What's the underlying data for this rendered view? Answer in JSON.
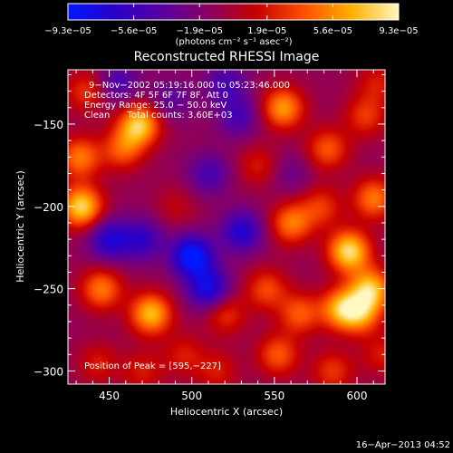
{
  "chart_data": {
    "type": "heatmap",
    "title": "Reconstructed RHESSI Image",
    "xlabel": "Heliocentric X (arcsec)",
    "ylabel": "Heliocentric Y (arcsec)",
    "xlim": [
      425,
      617
    ],
    "ylim": [
      -308,
      -117
    ],
    "x_ticks": [
      450,
      500,
      550,
      600
    ],
    "x_tick_labels": [
      "450",
      "500",
      "550",
      "600"
    ],
    "y_ticks": [
      -150,
      -200,
      -250,
      -300
    ],
    "y_tick_labels": [
      "−150",
      "−200",
      "−250",
      "−300"
    ],
    "colorbar": {
      "min": -9.3e-05,
      "max": 9.3e-05,
      "tick_values": [
        -9.3e-05,
        -5.6e-05,
        -1.9e-05,
        1.9e-05,
        5.6e-05,
        9.3e-05
      ],
      "tick_labels": [
        "−9.3e−05",
        "−5.6e−05",
        "−1.9e−05",
        "1.9e−05",
        "5.6e−05",
        "9.3e−05"
      ],
      "unit_label": "(photons cm⁻² s⁻¹ asec⁻²)",
      "colors": [
        "#0018ff",
        "#2a00c8",
        "#5a00a0",
        "#8a0060",
        "#c80000",
        "#ff5000",
        "#ffb000",
        "#fff8c0"
      ]
    },
    "annotations": [
      "9−Nov−2002 05:19:16.000 to 05:23:46.000",
      "Detectors: 4F 5F 6F 7F 8F, Att 0",
      "Energy Range: 25.0 − 50.0 keV",
      "Clean      Total counts: 3.60E+03"
    ],
    "peak_label": "Position of Peak = [595,−227]",
    "peak_position": [
      595,
      -227
    ],
    "emission_blobs": [
      {
        "x": 433,
        "y": -200,
        "value": 9e-05
      },
      {
        "x": 432,
        "y": -170,
        "value": 6e-05
      },
      {
        "x": 436,
        "y": -130,
        "value": 4e-05
      },
      {
        "x": 468,
        "y": -150,
        "value": 8.5e-05
      },
      {
        "x": 458,
        "y": -165,
        "value": 5e-05
      },
      {
        "x": 490,
        "y": -200,
        "value": 2e-05
      },
      {
        "x": 475,
        "y": -265,
        "value": 8e-05
      },
      {
        "x": 445,
        "y": -250,
        "value": 6e-05
      },
      {
        "x": 470,
        "y": -300,
        "value": 3e-05
      },
      {
        "x": 443,
        "y": -295,
        "value": 3e-05
      },
      {
        "x": 495,
        "y": -290,
        "value": 3e-05
      },
      {
        "x": 520,
        "y": -265,
        "value": 4e-05
      },
      {
        "x": 545,
        "y": -250,
        "value": 4.5e-05
      },
      {
        "x": 515,
        "y": -300,
        "value": 3e-05
      },
      {
        "x": 552,
        "y": -290,
        "value": 5e-05
      },
      {
        "x": 555,
        "y": -140,
        "value": 7e-05
      },
      {
        "x": 560,
        "y": -210,
        "value": 6e-05
      },
      {
        "x": 540,
        "y": -175,
        "value": 3e-05
      },
      {
        "x": 582,
        "y": -165,
        "value": 5e-05
      },
      {
        "x": 578,
        "y": -200,
        "value": 4e-05
      },
      {
        "x": 595,
        "y": -227,
        "value": 9.3e-05
      },
      {
        "x": 608,
        "y": -250,
        "value": 8e-05
      },
      {
        "x": 590,
        "y": -262,
        "value": 7e-05
      },
      {
        "x": 602,
        "y": -265,
        "value": 6e-05
      },
      {
        "x": 565,
        "y": -265,
        "value": 5e-05
      },
      {
        "x": 610,
        "y": -195,
        "value": 6e-05
      },
      {
        "x": 605,
        "y": -145,
        "value": 4e-05
      },
      {
        "x": 612,
        "y": -125,
        "value": 3e-05
      },
      {
        "x": 585,
        "y": -300,
        "value": 4e-05
      },
      {
        "x": 615,
        "y": -290,
        "value": 3e-05
      },
      {
        "x": 500,
        "y": -230,
        "value": -9e-05
      },
      {
        "x": 510,
        "y": -250,
        "value": -7e-05
      },
      {
        "x": 450,
        "y": -220,
        "value": -6e-05
      },
      {
        "x": 470,
        "y": -220,
        "value": -5e-05
      },
      {
        "x": 530,
        "y": -215,
        "value": -6e-05
      },
      {
        "x": 510,
        "y": -180,
        "value": -4e-05
      },
      {
        "x": 528,
        "y": -145,
        "value": -4e-05
      },
      {
        "x": 455,
        "y": -125,
        "value": -4e-05
      },
      {
        "x": 520,
        "y": -125,
        "value": -4e-05
      },
      {
        "x": 487,
        "y": -135,
        "value": -3e-05
      },
      {
        "x": 560,
        "y": -180,
        "value": -2e-05
      }
    ]
  },
  "footer": {
    "timestamp": "16−Apr−2013 04:52"
  }
}
